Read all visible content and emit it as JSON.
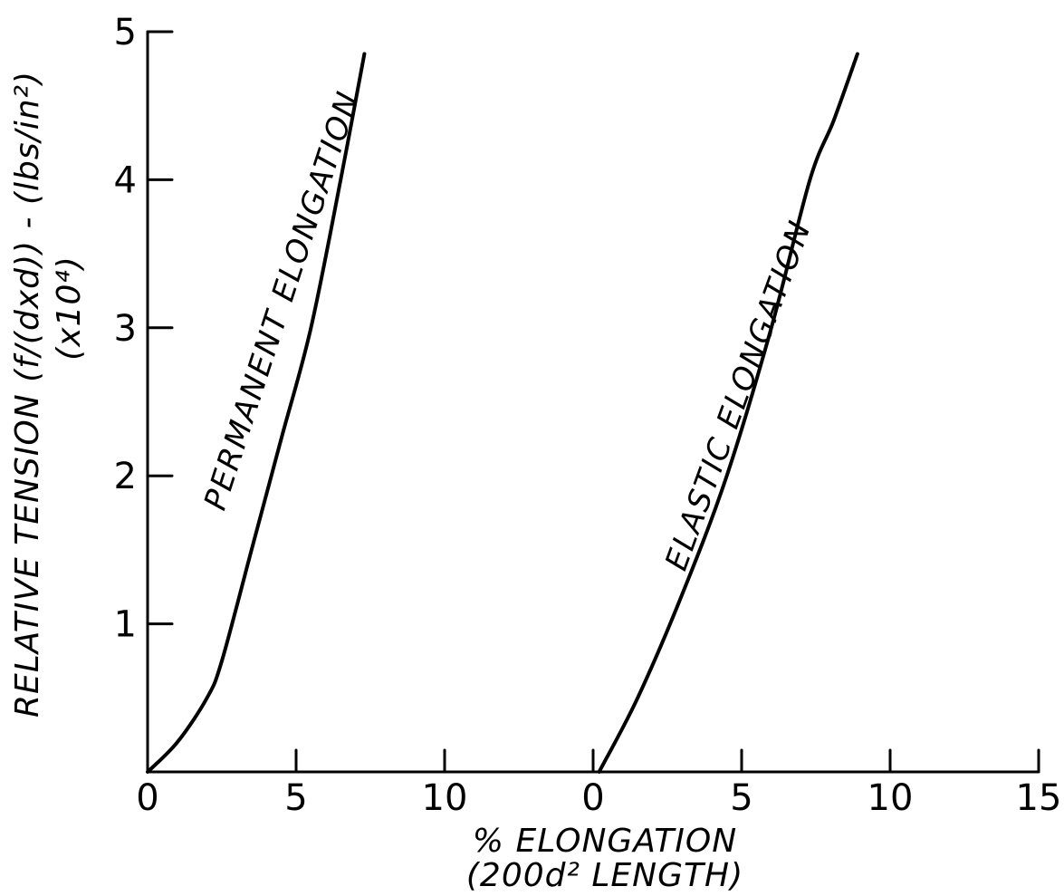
{
  "chart_data": {
    "type": "line",
    "title": "",
    "xlabel_line1": "% ELONGATION",
    "xlabel_line2": "(200d² LENGTH)",
    "ylabel_line1": "RELATIVE TENSION (f/(dxd)) - (lbs/in²)",
    "ylabel_line2": "(x10⁴)",
    "ylim": [
      0,
      5
    ],
    "y_ticks": [
      {
        "value": 1,
        "label": "1"
      },
      {
        "value": 2,
        "label": "2"
      },
      {
        "value": 3,
        "label": "3"
      },
      {
        "value": 4,
        "label": "4"
      },
      {
        "value": 5,
        "label": "5"
      }
    ],
    "x_ticks": [
      {
        "pos": 0,
        "label": "0"
      },
      {
        "pos": 5,
        "label": "5"
      },
      {
        "pos": 10,
        "label": "10"
      },
      {
        "pos": 15,
        "label": "0"
      },
      {
        "pos": 20,
        "label": "5"
      },
      {
        "pos": 25,
        "label": "10"
      },
      {
        "pos": 30,
        "label": "15"
      }
    ],
    "grid": false,
    "series": [
      {
        "name": "PERMANENT ELONGATION",
        "x_offset": 0,
        "x": [
          0,
          1,
          2,
          2.5,
          3.5,
          4.5,
          5.5,
          6.5,
          7.3
        ],
        "y": [
          0,
          0.2,
          0.5,
          0.75,
          1.5,
          2.25,
          3.0,
          4.0,
          4.85
        ]
      },
      {
        "name": "ELASTIC ELONGATION",
        "x_offset": 15,
        "x": [
          0.2,
          1.5,
          3.0,
          4.5,
          6.0,
          7.3,
          8.1,
          8.9
        ],
        "y": [
          0,
          0.5,
          1.2,
          2.0,
          3.0,
          4.0,
          4.4,
          4.85
        ]
      }
    ]
  }
}
